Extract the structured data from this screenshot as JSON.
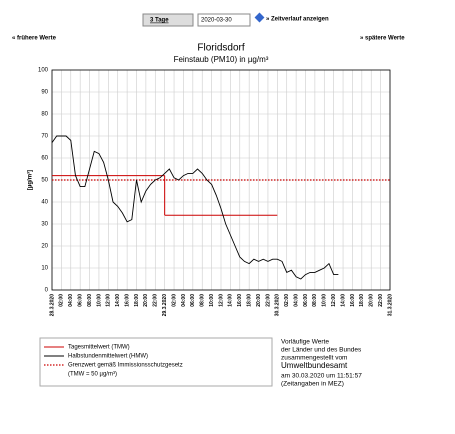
{
  "controls": {
    "period": "3 Tage",
    "date": "2020-03-30",
    "show": "» Zeitverlauf anzeigen",
    "earlier": "« frühere Werte",
    "later": "» spätere Werte"
  },
  "chart_data": {
    "type": "line",
    "title": "Floridsdorf",
    "subtitle": "Feinstaub (PM10) in µg/m³",
    "y_label": "[µg/m³]",
    "ylim": [
      0,
      100
    ],
    "yticks": [
      0,
      10,
      20,
      30,
      40,
      50,
      60,
      70,
      80,
      90,
      100
    ],
    "xlim": [
      0,
      72
    ],
    "grid": true,
    "xticks": [
      {
        "value": 0,
        "label": "28.3.2020"
      },
      {
        "value": 2,
        "label": "02:00"
      },
      {
        "value": 4,
        "label": "04:00"
      },
      {
        "value": 6,
        "label": "06:00"
      },
      {
        "value": 8,
        "label": "08:00"
      },
      {
        "value": 10,
        "label": "10:00"
      },
      {
        "value": 12,
        "label": "12:00"
      },
      {
        "value": 14,
        "label": "14:00"
      },
      {
        "value": 16,
        "label": "16:00"
      },
      {
        "value": 18,
        "label": "18:00"
      },
      {
        "value": 20,
        "label": "20:00"
      },
      {
        "value": 22,
        "label": "22:00"
      },
      {
        "value": 24,
        "label": "29.3.2020"
      },
      {
        "value": 26,
        "label": "02:00"
      },
      {
        "value": 28,
        "label": "04:00"
      },
      {
        "value": 30,
        "label": "06:00"
      },
      {
        "value": 32,
        "label": "08:00"
      },
      {
        "value": 34,
        "label": "10:00"
      },
      {
        "value": 36,
        "label": "12:00"
      },
      {
        "value": 38,
        "label": "14:00"
      },
      {
        "value": 40,
        "label": "16:00"
      },
      {
        "value": 42,
        "label": "18:00"
      },
      {
        "value": 44,
        "label": "20:00"
      },
      {
        "value": 46,
        "label": "22:00"
      },
      {
        "value": 48,
        "label": "30.3.2020"
      },
      {
        "value": 50,
        "label": "02:00"
      },
      {
        "value": 52,
        "label": "04:00"
      },
      {
        "value": 54,
        "label": "06:00"
      },
      {
        "value": 56,
        "label": "08:00"
      },
      {
        "value": 58,
        "label": "10:00"
      },
      {
        "value": 60,
        "label": "12:00"
      },
      {
        "value": 62,
        "label": "14:00"
      },
      {
        "value": 64,
        "label": "16:00"
      },
      {
        "value": 66,
        "label": "18:00"
      },
      {
        "value": 68,
        "label": "20:00"
      },
      {
        "value": 70,
        "label": "22:00"
      },
      {
        "value": 72,
        "label": "31.3.2020"
      }
    ],
    "series": [
      {
        "name": "Tagesmittelwert (TMW)",
        "color": "#cc0000",
        "x": [
          0,
          24
        ],
        "values": [
          52,
          34
        ]
      },
      {
        "name": "Halbstundenmittelwert (HMW)",
        "color": "#000000",
        "x": [
          0,
          1,
          2,
          3,
          4,
          5,
          6,
          7,
          8,
          9,
          10,
          11,
          12,
          13,
          14,
          15,
          16,
          17,
          18,
          19,
          20,
          21,
          22,
          23,
          24,
          25,
          26,
          27,
          28,
          29,
          30,
          31,
          32,
          33,
          34,
          35,
          36,
          37,
          38,
          39,
          40,
          41,
          42,
          43,
          44,
          45,
          46,
          47,
          48,
          49,
          50,
          51,
          52,
          53,
          54,
          55,
          56,
          57,
          58,
          59,
          60,
          61
        ],
        "values": [
          67,
          70,
          70,
          70,
          68,
          52,
          47,
          47,
          55,
          63,
          62,
          58,
          50,
          40,
          38,
          35,
          31,
          32,
          50,
          40,
          45,
          48,
          50,
          51,
          53,
          55,
          51,
          50,
          52,
          53,
          53,
          55,
          53,
          50,
          48,
          43,
          37,
          30,
          25,
          20,
          15,
          13,
          12,
          14,
          13,
          14,
          13,
          14,
          14,
          13,
          8,
          9,
          6,
          5,
          7,
          8,
          8,
          9,
          10,
          12,
          7,
          7
        ]
      }
    ],
    "limit": {
      "name": "Grenzwert gemäß Immissionsschutzgesetz",
      "note": "(TMW = 50 µg/m³)",
      "value": 50,
      "color": "#cc0000"
    }
  },
  "info": [
    "Vorläufige Werte",
    "der Länder und des Bundes",
    "zusammengestellt vom",
    "Umweltbundesamt",
    "am 30.03.2020 um 11:51:57",
    "(Zeitangaben in MEZ)"
  ]
}
